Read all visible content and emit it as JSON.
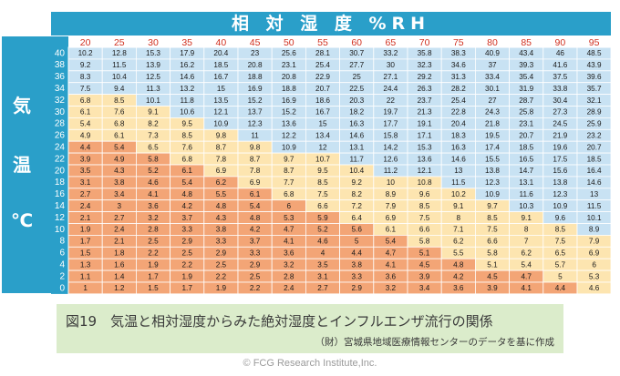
{
  "chart_data": {
    "type": "table",
    "title": "相 対 湿 度 %RH",
    "row_label_chars": [
      "気",
      "温",
      "℃"
    ],
    "columns": [
      20,
      25,
      30,
      35,
      40,
      45,
      50,
      55,
      60,
      65,
      70,
      75,
      80,
      85,
      90,
      95
    ],
    "rows": [
      40,
      38,
      36,
      34,
      32,
      30,
      28,
      26,
      24,
      22,
      20,
      18,
      16,
      14,
      12,
      10,
      8,
      6,
      4,
      2,
      0
    ],
    "values": [
      [
        "10.2",
        "12.8",
        "15.3",
        "17.9",
        "20.4",
        "23",
        "25.6",
        "28.1",
        "30.7",
        "33.2",
        "35.8",
        "38.3",
        "40.9",
        "43.4",
        "46",
        "48.5"
      ],
      [
        "9.2",
        "11.5",
        "13.9",
        "16.2",
        "18.5",
        "20.8",
        "23.1",
        "25.4",
        "27.7",
        "30",
        "32.3",
        "34.6",
        "37",
        "39.3",
        "41.6",
        "43.9"
      ],
      [
        "8.3",
        "10.4",
        "12.5",
        "14.6",
        "16.7",
        "18.8",
        "20.8",
        "22.9",
        "25",
        "27.1",
        "29.2",
        "31.3",
        "33.4",
        "35.4",
        "37.5",
        "39.6"
      ],
      [
        "7.5",
        "9.4",
        "11.3",
        "13.2",
        "15",
        "16.9",
        "18.8",
        "20.7",
        "22.5",
        "24.4",
        "26.3",
        "28.2",
        "30.1",
        "31.9",
        "33.8",
        "35.7"
      ],
      [
        "6.8",
        "8.5",
        "10.1",
        "11.8",
        "13.5",
        "15.2",
        "16.9",
        "18.6",
        "20.3",
        "22",
        "23.7",
        "25.4",
        "27",
        "28.7",
        "30.4",
        "32.1"
      ],
      [
        "6.1",
        "7.6",
        "9.1",
        "10.6",
        "12.1",
        "13.7",
        "15.2",
        "16.7",
        "18.2",
        "19.7",
        "21.3",
        "22.8",
        "24.3",
        "25.8",
        "27.3",
        "28.9"
      ],
      [
        "5.4",
        "6.8",
        "8.2",
        "9.5",
        "10.9",
        "12.3",
        "13.6",
        "15",
        "16.3",
        "17.7",
        "19.1",
        "20.4",
        "21.8",
        "23.1",
        "24.5",
        "25.9"
      ],
      [
        "4.9",
        "6.1",
        "7.3",
        "8.5",
        "9.8",
        "11",
        "12.2",
        "13.4",
        "14.6",
        "15.8",
        "17.1",
        "18.3",
        "19.5",
        "20.7",
        "21.9",
        "23.2"
      ],
      [
        "4.4",
        "5.4",
        "6.5",
        "7.6",
        "8.7",
        "9.8",
        "10.9",
        "12",
        "13.1",
        "14.2",
        "15.3",
        "16.3",
        "17.4",
        "18.5",
        "19.6",
        "20.7"
      ],
      [
        "3.9",
        "4.9",
        "5.8",
        "6.8",
        "7.8",
        "8.7",
        "9.7",
        "10.7",
        "11.7",
        "12.6",
        "13.6",
        "14.6",
        "15.5",
        "16.5",
        "17.5",
        "18.5"
      ],
      [
        "3.5",
        "4.3",
        "5.2",
        "6.1",
        "6.9",
        "7.8",
        "8.7",
        "9.5",
        "10.4",
        "11.2",
        "12.1",
        "13",
        "13.8",
        "14.7",
        "15.6",
        "16.4"
      ],
      [
        "3.1",
        "3.8",
        "4.6",
        "5.4",
        "6.2",
        "6.9",
        "7.7",
        "8.5",
        "9.2",
        "10",
        "10.8",
        "11.5",
        "12.3",
        "13.1",
        "13.8",
        "14.6"
      ],
      [
        "2.7",
        "3.4",
        "4.1",
        "4.8",
        "5.5",
        "6.1",
        "6.8",
        "7.5",
        "8.2",
        "8.9",
        "9.6",
        "10.2",
        "10.9",
        "11.6",
        "12.3",
        "13"
      ],
      [
        "2.4",
        "3",
        "3.6",
        "4.2",
        "4.8",
        "5.4",
        "6",
        "6.6",
        "7.2",
        "7.9",
        "8.5",
        "9.1",
        "9.7",
        "10.3",
        "10.9",
        "11.5"
      ],
      [
        "2.1",
        "2.7",
        "3.2",
        "3.7",
        "4.3",
        "4.8",
        "5.3",
        "5.9",
        "6.4",
        "6.9",
        "7.5",
        "8",
        "8.5",
        "9.1",
        "9.6",
        "10.1"
      ],
      [
        "1.9",
        "2.4",
        "2.8",
        "3.3",
        "3.8",
        "4.2",
        "4.7",
        "5.2",
        "5.6",
        "6.1",
        "6.6",
        "7.1",
        "7.5",
        "8",
        "8.5",
        "8.9"
      ],
      [
        "1.7",
        "2.1",
        "2.5",
        "2.9",
        "3.3",
        "3.7",
        "4.1",
        "4.6",
        "5",
        "5.4",
        "5.8",
        "6.2",
        "6.6",
        "7",
        "7.5",
        "7.9"
      ],
      [
        "1.5",
        "1.8",
        "2.2",
        "2.5",
        "2.9",
        "3.3",
        "3.6",
        "4",
        "4.4",
        "4.7",
        "5.1",
        "5.5",
        "5.8",
        "6.2",
        "6.5",
        "6.9"
      ],
      [
        "1.3",
        "1.6",
        "1.9",
        "2.2",
        "2.5",
        "2.9",
        "3.2",
        "3.5",
        "3.8",
        "4.1",
        "4.5",
        "4.8",
        "5.1",
        "5.4",
        "5.7",
        "6"
      ],
      [
        "1.1",
        "1.4",
        "1.7",
        "1.9",
        "2.2",
        "2.5",
        "2.8",
        "3.1",
        "3.3",
        "3.6",
        "3.9",
        "4.2",
        "4.5",
        "4.7",
        "5",
        "5.3"
      ],
      [
        "1",
        "1.2",
        "1.5",
        "1.7",
        "1.9",
        "2.2",
        "2.4",
        "2.7",
        "2.9",
        "3.2",
        "3.4",
        "3.6",
        "3.9",
        "4.1",
        "4.4",
        "4.6"
      ]
    ],
    "zones": [
      [
        2,
        2,
        2,
        2,
        2,
        2,
        2,
        2,
        2,
        2,
        2,
        2,
        2,
        2,
        2,
        2
      ],
      [
        2,
        2,
        2,
        2,
        2,
        2,
        2,
        2,
        2,
        2,
        2,
        2,
        2,
        2,
        2,
        2
      ],
      [
        2,
        2,
        2,
        2,
        2,
        2,
        2,
        2,
        2,
        2,
        2,
        2,
        2,
        2,
        2,
        2
      ],
      [
        2,
        2,
        2,
        2,
        2,
        2,
        2,
        2,
        2,
        2,
        2,
        2,
        2,
        2,
        2,
        2
      ],
      [
        1,
        1,
        2,
        2,
        2,
        2,
        2,
        2,
        2,
        2,
        2,
        2,
        2,
        2,
        2,
        2
      ],
      [
        1,
        1,
        1,
        2,
        2,
        2,
        2,
        2,
        2,
        2,
        2,
        2,
        2,
        2,
        2,
        2
      ],
      [
        1,
        1,
        1,
        1,
        2,
        2,
        2,
        2,
        2,
        2,
        2,
        2,
        2,
        2,
        2,
        2
      ],
      [
        1,
        1,
        1,
        1,
        1,
        2,
        2,
        2,
        2,
        2,
        2,
        2,
        2,
        2,
        2,
        2
      ],
      [
        0,
        0,
        1,
        1,
        1,
        1,
        2,
        2,
        2,
        2,
        2,
        2,
        2,
        2,
        2,
        2
      ],
      [
        0,
        0,
        0,
        1,
        1,
        1,
        1,
        1,
        2,
        2,
        2,
        2,
        2,
        2,
        2,
        2
      ],
      [
        0,
        0,
        0,
        0,
        1,
        1,
        1,
        1,
        1,
        2,
        2,
        2,
        2,
        2,
        2,
        2
      ],
      [
        0,
        0,
        0,
        0,
        0,
        1,
        1,
        1,
        1,
        1,
        1,
        2,
        2,
        2,
        2,
        2
      ],
      [
        0,
        0,
        0,
        0,
        0,
        0,
        1,
        1,
        1,
        1,
        1,
        1,
        2,
        2,
        2,
        2
      ],
      [
        0,
        0,
        0,
        0,
        0,
        0,
        0,
        1,
        1,
        1,
        1,
        1,
        1,
        2,
        2,
        2
      ],
      [
        0,
        0,
        0,
        0,
        0,
        0,
        0,
        0,
        1,
        1,
        1,
        1,
        1,
        1,
        2,
        2
      ],
      [
        0,
        0,
        0,
        0,
        0,
        0,
        0,
        0,
        0,
        1,
        1,
        1,
        1,
        1,
        1,
        2
      ],
      [
        0,
        0,
        0,
        0,
        0,
        0,
        0,
        0,
        0,
        0,
        1,
        1,
        1,
        1,
        1,
        1
      ],
      [
        0,
        0,
        0,
        0,
        0,
        0,
        0,
        0,
        0,
        0,
        0,
        1,
        1,
        1,
        1,
        1
      ],
      [
        0,
        0,
        0,
        0,
        0,
        0,
        0,
        0,
        0,
        0,
        0,
        0,
        1,
        1,
        1,
        1
      ],
      [
        0,
        0,
        0,
        0,
        0,
        0,
        0,
        0,
        0,
        0,
        0,
        0,
        0,
        0,
        1,
        1
      ],
      [
        0,
        0,
        0,
        0,
        0,
        0,
        0,
        0,
        0,
        0,
        0,
        0,
        0,
        0,
        0,
        1
      ]
    ],
    "zone_colors": [
      "#f3a576",
      "#fde5b0",
      "#c8e2f3"
    ]
  },
  "colors": {
    "header_bg": "#2a9fc9",
    "row_header_bg": "#2a9fc9",
    "column_label": "#d0301f"
  },
  "caption": {
    "title": "図19　気温と相対湿度からみた絶対湿度とインフルエンザ流行の関係",
    "source": "（財）宮城県地域医療情報センターのデータを基に作成"
  },
  "credit": "© FCG Research Institute,Inc."
}
